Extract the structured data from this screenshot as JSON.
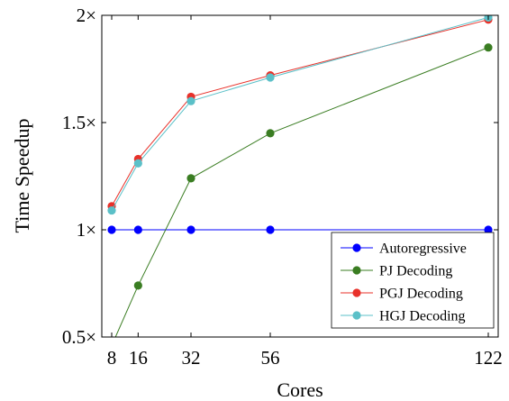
{
  "chart_data": {
    "type": "line",
    "title": "",
    "xlabel": "Cores",
    "ylabel": "Time Speedup",
    "x": [
      8,
      16,
      32,
      56,
      122
    ],
    "xticks": [
      8,
      16,
      32,
      56,
      122
    ],
    "xtick_labels": [
      "8",
      "16",
      "32",
      "56",
      "122"
    ],
    "xlim": [
      5,
      125
    ],
    "ylim": [
      0.5,
      2.0
    ],
    "yticks": [
      0.5,
      1.0,
      1.5,
      2.0
    ],
    "ytick_labels": [
      "0.5×",
      "1×",
      "1.5×",
      "2×"
    ],
    "grid": false,
    "legend_position": "bottom-right",
    "series": [
      {
        "name": "Autoregressive",
        "color": "#0000ff",
        "x": [
          8,
          16,
          32,
          56,
          122
        ],
        "values": [
          1.0,
          1.0,
          1.0,
          1.0,
          1.0
        ]
      },
      {
        "name": "PJ Decoding",
        "color": "#3a7d22",
        "x": [
          8,
          16,
          32,
          56,
          122
        ],
        "values": [
          0.46,
          0.74,
          1.24,
          1.45,
          1.85
        ]
      },
      {
        "name": "PGJ Decoding",
        "color": "#e8312a",
        "x": [
          8,
          16,
          32,
          56,
          122
        ],
        "values": [
          1.11,
          1.33,
          1.62,
          1.72,
          1.98
        ]
      },
      {
        "name": "HGJ Decoding",
        "color": "#5bc0c8",
        "x": [
          8,
          16,
          32,
          56,
          122
        ],
        "values": [
          1.09,
          1.31,
          1.6,
          1.71,
          1.99
        ]
      }
    ]
  }
}
